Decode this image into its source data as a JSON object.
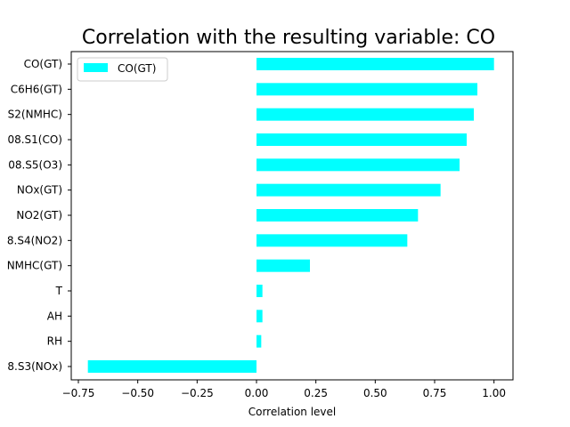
{
  "chart_data": {
    "type": "bar",
    "orientation": "horizontal",
    "title": "Correlation with the resulting variable: CO",
    "xlabel": "Correlation level",
    "ylabel": "",
    "xlim": [
      -0.78,
      1.08
    ],
    "xticks": [
      -0.75,
      -0.5,
      -0.25,
      0.0,
      0.25,
      0.5,
      0.75,
      1.0
    ],
    "xtick_labels": [
      "−0.75",
      "−0.50",
      "−0.25",
      "0.00",
      "0.25",
      "0.50",
      "0.75",
      "1.00"
    ],
    "categories": [
      "CO(GT)",
      "C6H6(GT)",
      "S2(NMHC)",
      "08.S1(CO)",
      "08.S5(O3)",
      "NOx(GT)",
      "NO2(GT)",
      "8.S4(NO2)",
      "NMHC(GT)",
      "T",
      "AH",
      "RH",
      "8.S3(NOx)"
    ],
    "series": [
      {
        "name": "CO(GT)",
        "color": "#00ffff",
        "values": [
          1.0,
          0.93,
          0.915,
          0.885,
          0.855,
          0.775,
          0.68,
          0.635,
          0.225,
          0.025,
          0.025,
          0.02,
          -0.71
        ]
      }
    ],
    "legend_position": "top-left",
    "grid": false
  }
}
